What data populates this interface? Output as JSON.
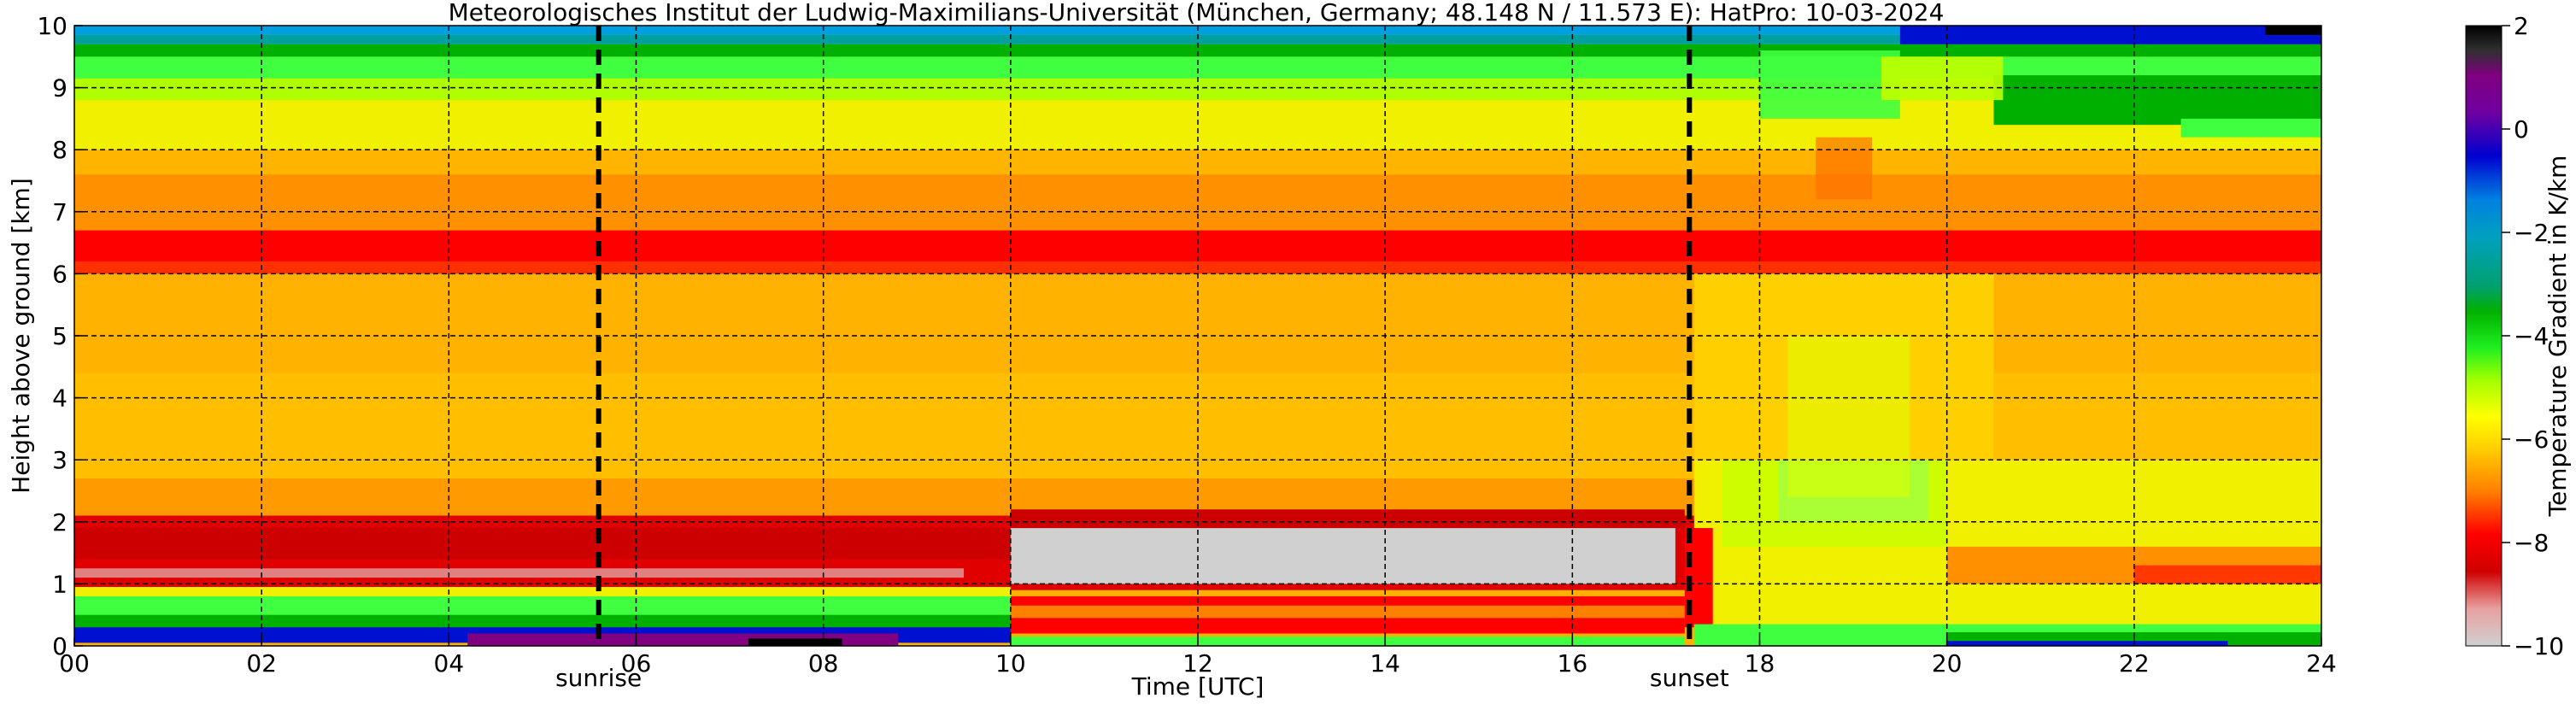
{
  "chart_data": {
    "type": "heatmap",
    "title": "Meteorologisches Institut der Ludwig-Maximilians-Universität (München, Germany; 48.148 N / 11.573 E):    HatPro: 10-03-2024",
    "xlabel": "Time [UTC]",
    "ylabel": "Height above ground [km]",
    "xlim": [
      0,
      24
    ],
    "ylim": [
      0,
      10
    ],
    "x_ticks": [
      0,
      2,
      4,
      6,
      8,
      10,
      12,
      14,
      16,
      18,
      20,
      22,
      24
    ],
    "x_tick_labels": [
      "00",
      "02",
      "04",
      "06",
      "08",
      "10",
      "12",
      "14",
      "16",
      "18",
      "20",
      "22",
      "24"
    ],
    "y_ticks": [
      0,
      1,
      2,
      3,
      4,
      5,
      6,
      7,
      8,
      9,
      10
    ],
    "y_tick_labels": [
      "0",
      "1",
      "2",
      "3",
      "4",
      "5",
      "6",
      "7",
      "8",
      "9",
      "10"
    ],
    "grid": true,
    "vlines": [
      {
        "x": 5.6,
        "label": "sunrise"
      },
      {
        "x": 17.25,
        "label": "sunset"
      }
    ],
    "colorbar": {
      "label": "Temperature Gradient in K/km",
      "range": [
        -10,
        2
      ],
      "ticks": [
        2,
        0,
        -2,
        -4,
        -6,
        -8,
        -10
      ],
      "tick_labels": [
        "2",
        "0",
        "−2",
        "−4",
        "−6",
        "−8",
        "−10"
      ]
    },
    "z_description_bands": [
      {
        "height_km": [
          9.8,
          10.0
        ],
        "value": -1.5
      },
      {
        "height_km": [
          9.2,
          9.8
        ],
        "value": -3.5
      },
      {
        "height_km": [
          8.8,
          9.2
        ],
        "value": -5.0
      },
      {
        "height_km": [
          8.0,
          8.8
        ],
        "value": -6.2
      },
      {
        "height_km": [
          6.7,
          8.0
        ],
        "value": -7.4
      },
      {
        "height_km": [
          5.9,
          6.7
        ],
        "value": -8.2
      },
      {
        "height_km": [
          2.7,
          5.9
        ],
        "value": -7.3
      },
      {
        "height_km": [
          2.1,
          2.7
        ],
        "value": -7.8
      },
      {
        "height_km": [
          0.9,
          2.1
        ],
        "value": -8.5
      },
      {
        "height_km": [
          0.3,
          0.9
        ],
        "value": -4.0
      },
      {
        "height_km": [
          0.0,
          0.3
        ],
        "value": -1.0
      }
    ],
    "colors": {
      "grid": "#000000",
      "black": "#000000",
      "purple": "#800080",
      "blue": "#0010d0",
      "skyblue": "#00a0e0",
      "teal": "#00a0a0",
      "green": "#00b000",
      "lime": "#40ff40",
      "yellow": "#f0f000",
      "orange": "#ffb000",
      "red": "#ff0000",
      "grey": "#d0d0d0"
    }
  }
}
